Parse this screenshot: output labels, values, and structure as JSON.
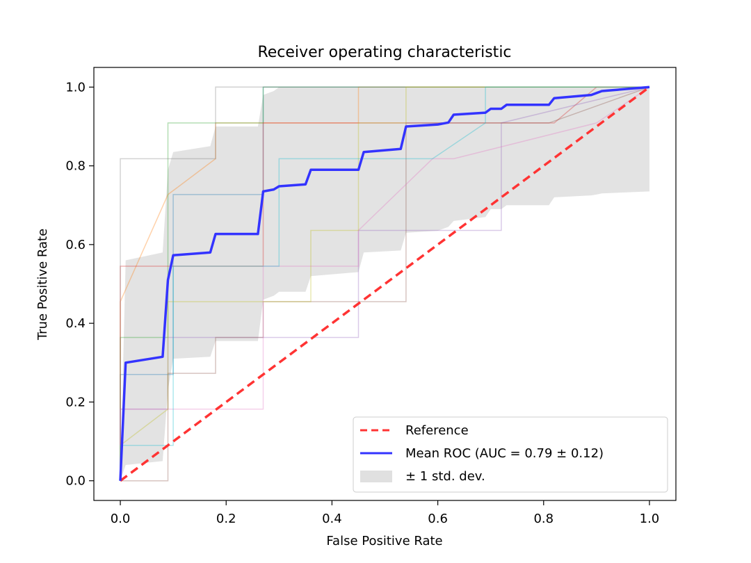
{
  "chart_data": {
    "type": "line",
    "title": "Receiver operating characteristic",
    "xlabel": "False Positive Rate",
    "ylabel": "True Positive Rate",
    "xlim": [
      -0.05,
      1.05
    ],
    "ylim": [
      -0.05,
      1.05
    ],
    "xticks": [
      0.0,
      0.2,
      0.4,
      0.6,
      0.8,
      1.0
    ],
    "yticks": [
      0.0,
      0.2,
      0.4,
      0.6,
      0.8,
      1.0
    ],
    "xtick_labels": [
      "0.0",
      "0.2",
      "0.4",
      "0.6",
      "0.8",
      "1.0"
    ],
    "ytick_labels": [
      "0.0",
      "0.2",
      "0.4",
      "0.6",
      "0.8",
      "1.0"
    ],
    "grid": false,
    "legend_position": "lower-right",
    "legend": {
      "reference": "Reference",
      "mean": "Mean ROC (AUC = 0.79 ± 0.12)",
      "std": "± 1 std. dev."
    },
    "reference_line": {
      "x": [
        0,
        1
      ],
      "y": [
        0,
        1
      ],
      "color": "#ff3333",
      "style": "dashed"
    },
    "mean_roc": {
      "color": "#3333ff",
      "x": [
        0,
        0.01,
        0.08,
        0.09,
        0.1,
        0.17,
        0.18,
        0.26,
        0.27,
        0.29,
        0.3,
        0.35,
        0.36,
        0.45,
        0.46,
        0.53,
        0.54,
        0.6,
        0.62,
        0.63,
        0.69,
        0.7,
        0.72,
        0.73,
        0.81,
        0.82,
        0.89,
        0.9,
        0.91,
        1.0
      ],
      "y": [
        0,
        0.3,
        0.315,
        0.51,
        0.573,
        0.58,
        0.627,
        0.627,
        0.735,
        0.74,
        0.748,
        0.753,
        0.79,
        0.79,
        0.835,
        0.843,
        0.9,
        0.905,
        0.91,
        0.93,
        0.935,
        0.945,
        0.945,
        0.955,
        0.955,
        0.972,
        0.98,
        0.985,
        0.99,
        1.0
      ]
    },
    "std_band": {
      "color": "#cccccc",
      "x": [
        0,
        0.01,
        0.08,
        0.09,
        0.1,
        0.17,
        0.18,
        0.26,
        0.27,
        0.29,
        0.3,
        0.35,
        0.36,
        0.45,
        0.46,
        0.53,
        0.54,
        0.6,
        0.62,
        0.63,
        0.69,
        0.7,
        0.72,
        0.73,
        0.81,
        0.82,
        0.89,
        0.9,
        0.91,
        1.0
      ],
      "upper": [
        0,
        0.56,
        0.58,
        0.79,
        0.835,
        0.85,
        0.9,
        0.9,
        0.98,
        0.99,
        1.0,
        1.0,
        1.0,
        1.0,
        1.0,
        1.0,
        1.0,
        1.0,
        1.0,
        1.0,
        1.0,
        1.0,
        1.0,
        1.0,
        1.0,
        1.0,
        1.0,
        1.0,
        1.0,
        1.0
      ],
      "lower": [
        0,
        0.04,
        0.05,
        0.23,
        0.31,
        0.315,
        0.355,
        0.355,
        0.46,
        0.47,
        0.48,
        0.48,
        0.52,
        0.53,
        0.58,
        0.585,
        0.63,
        0.635,
        0.645,
        0.66,
        0.67,
        0.69,
        0.69,
        0.7,
        0.7,
        0.72,
        0.725,
        0.727,
        0.73,
        0.735
      ]
    },
    "fold_curves": [
      {
        "color": "#1f77b4",
        "x": [
          0,
          0,
          0.1,
          0.1,
          0.27,
          0.27,
          0.63,
          0.63,
          1.0
        ],
        "y": [
          0,
          0.27,
          0.27,
          0.727,
          0.727,
          1.0,
          1.0,
          1.0,
          1.0
        ]
      },
      {
        "color": "#ff7f0e",
        "x": [
          0,
          0,
          0.09,
          0.18,
          0.18,
          0.45,
          0.45,
          1.0
        ],
        "y": [
          0,
          0.455,
          0.727,
          0.818,
          0.909,
          0.909,
          1.0,
          1.0
        ]
      },
      {
        "color": "#2ca02c",
        "x": [
          0,
          0,
          0.09,
          0.09,
          0.27,
          0.27,
          1.0
        ],
        "y": [
          0,
          0.364,
          0.364,
          0.909,
          0.909,
          1.0,
          1.0
        ]
      },
      {
        "color": "#d62728",
        "x": [
          0,
          0,
          0.09,
          0.09,
          0.27,
          0.27,
          0.82,
          0.9,
          1.0
        ],
        "y": [
          0,
          0.545,
          0.545,
          0.545,
          0.545,
          0.909,
          0.909,
          1.0,
          1.0
        ]
      },
      {
        "color": "#9467bd",
        "x": [
          0,
          0,
          0.09,
          0.09,
          0.45,
          0.45,
          0.72,
          0.72,
          1.0
        ],
        "y": [
          0,
          0.182,
          0.182,
          0.364,
          0.364,
          0.636,
          0.636,
          0.909,
          1.0
        ]
      },
      {
        "color": "#8c564b",
        "x": [
          0,
          0,
          0.09,
          0.09,
          0.18,
          0.18,
          0.27,
          0.27,
          0.54,
          0.54,
          0.81,
          0.81,
          1.0
        ],
        "y": [
          0,
          0.0,
          0.0,
          0.273,
          0.273,
          0.364,
          0.364,
          0.455,
          0.455,
          0.909,
          0.909,
          0.909,
          1.0
        ]
      },
      {
        "color": "#e377c2",
        "x": [
          0,
          0,
          0.27,
          0.27,
          0.45,
          0.45,
          0.59,
          0.63,
          0.9,
          1.0
        ],
        "y": [
          0,
          0.182,
          0.182,
          0.545,
          0.545,
          0.636,
          0.818,
          0.818,
          0.909,
          1.0
        ]
      },
      {
        "color": "#7f7f7f",
        "x": [
          0,
          0,
          0.09,
          0.09,
          0.18,
          0.18,
          1.0
        ],
        "y": [
          0,
          0.818,
          0.818,
          0.818,
          0.818,
          1.0,
          1.0
        ]
      },
      {
        "color": "#bcbd22",
        "x": [
          0,
          0,
          0.09,
          0.09,
          0.36,
          0.36,
          0.45,
          0.45,
          0.54,
          0.54,
          1.0
        ],
        "y": [
          0,
          0.09,
          0.182,
          0.455,
          0.455,
          0.636,
          0.636,
          0.909,
          0.909,
          1.0,
          1.0
        ]
      },
      {
        "color": "#17becf",
        "x": [
          0,
          0,
          0.09,
          0.09,
          0.1,
          0.1,
          0.3,
          0.3,
          0.59,
          0.69,
          0.69,
          1.0
        ],
        "y": [
          0,
          0.09,
          0.09,
          0.09,
          0.09,
          0.545,
          0.545,
          0.818,
          0.818,
          0.909,
          1.0,
          1.0
        ]
      }
    ]
  }
}
